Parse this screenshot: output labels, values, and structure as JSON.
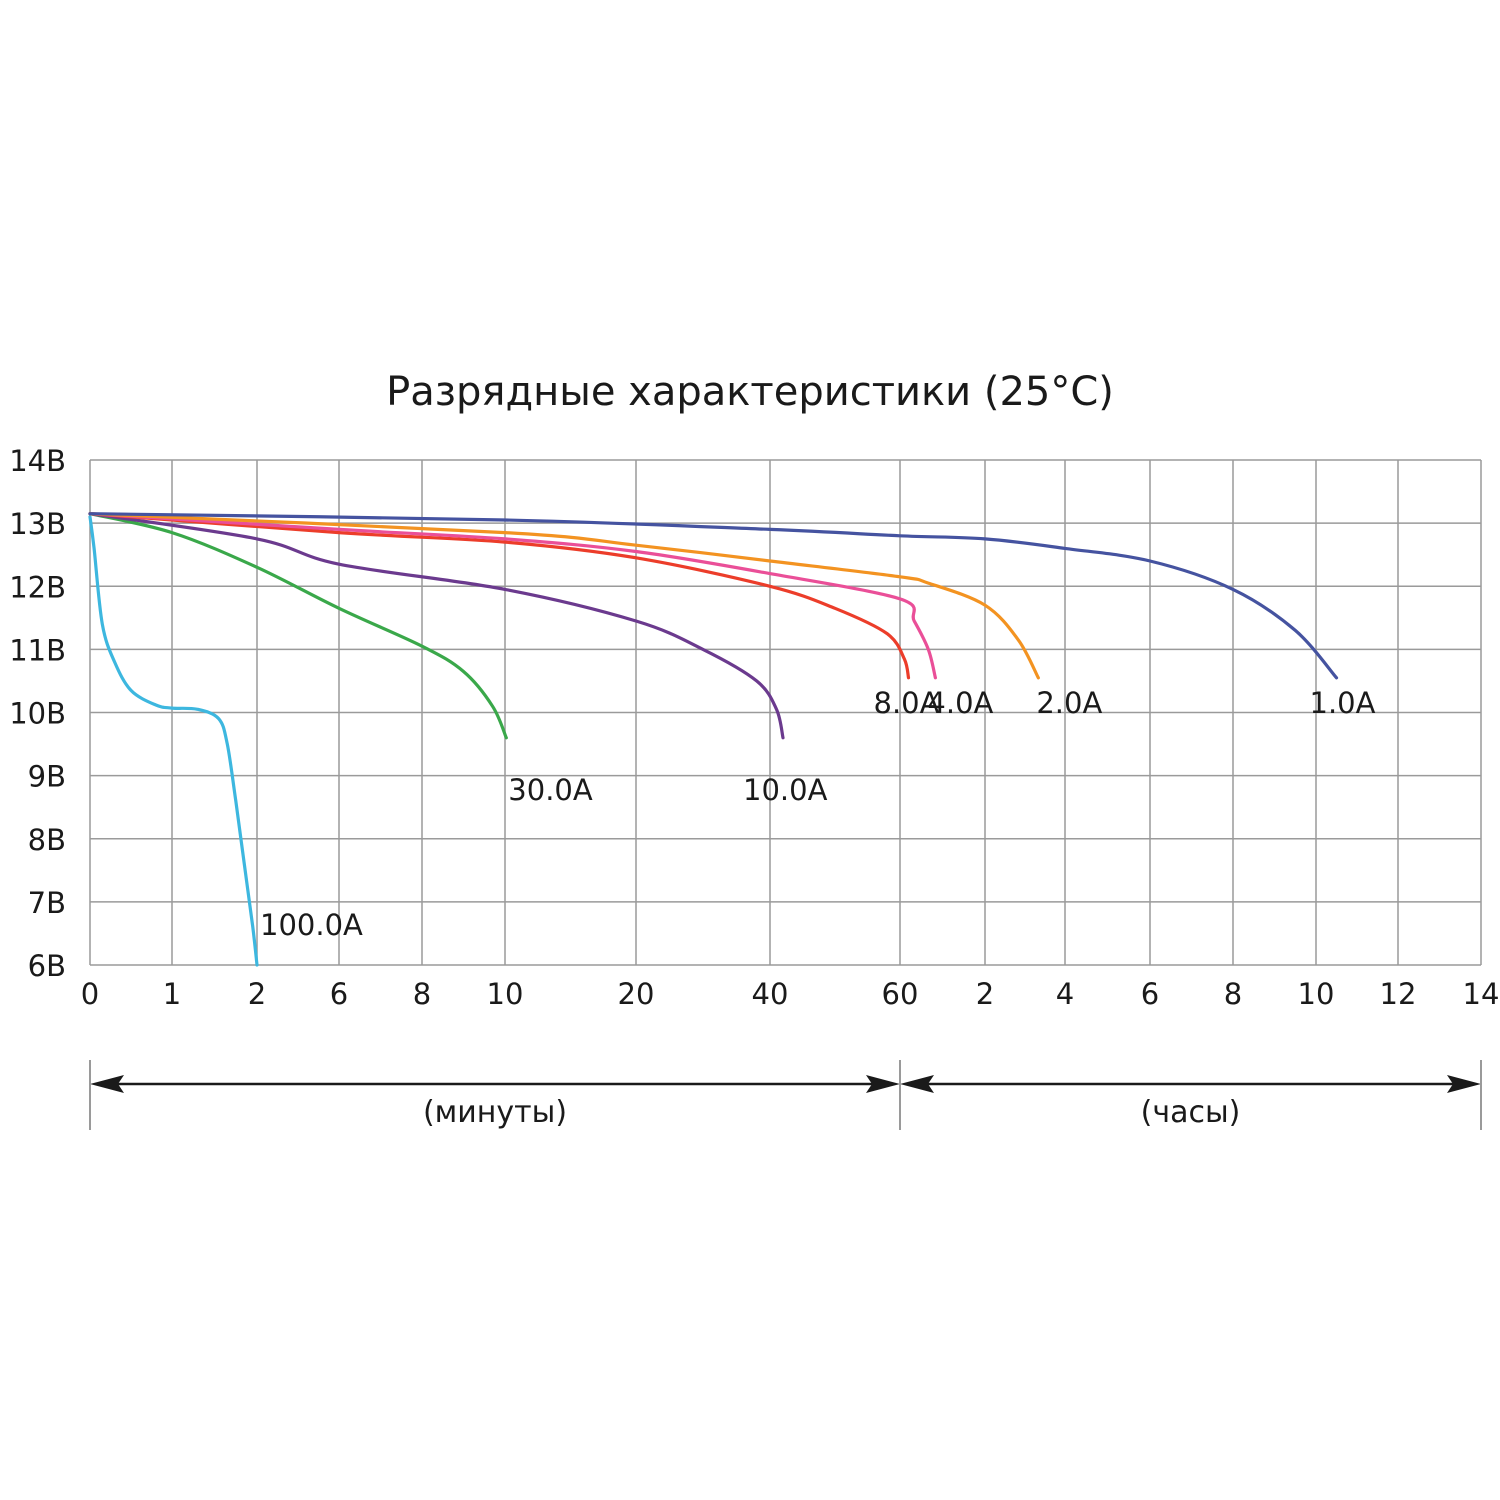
{
  "chart_data": {
    "type": "line",
    "title": "Разрядные характеристики (25°C)",
    "y_axis": {
      "range": [
        6,
        14
      ],
      "tick_values": [
        6,
        7,
        8,
        9,
        10,
        11,
        12,
        13,
        14
      ],
      "tick_labels": [
        "6В",
        "7В",
        "8В",
        "9В",
        "10В",
        "11В",
        "12В",
        "13В",
        "14В"
      ]
    },
    "x_axis": {
      "scale": "nonlinear",
      "tick_labels": [
        "0",
        "1",
        "2",
        "6",
        "8",
        "10",
        "20",
        "40",
        "60",
        "2",
        "4",
        "6",
        "8",
        "10",
        "12",
        "14"
      ],
      "ranges": [
        {
          "label": "(минуты)",
          "from_tick": 0,
          "to_tick": 8
        },
        {
          "label": "(часы)",
          "from_tick": 8,
          "to_tick": 15
        }
      ]
    },
    "grid": true,
    "legend": "inline labels at curve ends",
    "series": [
      {
        "name": "100.0A",
        "color": "#3db7df",
        "points": [
          [
            0,
            13.1
          ],
          [
            0.05,
            12.6
          ],
          [
            0.15,
            11.4
          ],
          [
            0.3,
            10.8
          ],
          [
            0.5,
            10.35
          ],
          [
            0.8,
            10.12
          ],
          [
            1.0,
            10.07
          ],
          [
            1.3,
            10.05
          ],
          [
            1.55,
            9.9
          ],
          [
            1.65,
            9.5
          ],
          [
            1.75,
            8.6
          ],
          [
            1.85,
            7.6
          ],
          [
            1.95,
            6.6
          ],
          [
            2.0,
            6.0
          ]
        ]
      },
      {
        "name": "30.0A",
        "color": "#3aa84a",
        "points": [
          [
            0,
            13.15
          ],
          [
            1,
            12.85
          ],
          [
            2,
            12.3
          ],
          [
            6,
            11.65
          ],
          [
            8,
            11.05
          ],
          [
            9,
            10.65
          ],
          [
            9.7,
            10.1
          ],
          [
            10.1,
            9.6
          ]
        ]
      },
      {
        "name": "10.0A",
        "color": "#6b3a8e",
        "points": [
          [
            0,
            13.15
          ],
          [
            2,
            12.75
          ],
          [
            6,
            12.35
          ],
          [
            10,
            11.95
          ],
          [
            20,
            11.45
          ],
          [
            30,
            11.0
          ],
          [
            38,
            10.5
          ],
          [
            41,
            10.05
          ],
          [
            42,
            9.6
          ]
        ]
      },
      {
        "name": "8.0A",
        "color": "#ec3d2a",
        "points": [
          [
            0,
            13.15
          ],
          [
            6,
            12.85
          ],
          [
            10,
            12.7
          ],
          [
            20,
            12.45
          ],
          [
            40,
            12.0
          ],
          [
            50,
            11.65
          ],
          [
            58,
            11.25
          ],
          [
            63,
            10.85
          ],
          [
            66,
            10.55
          ]
        ]
      },
      {
        "name": "4.0A",
        "color": "#ea4f98",
        "points": [
          [
            0,
            13.15
          ],
          [
            6,
            12.9
          ],
          [
            10,
            12.75
          ],
          [
            20,
            12.55
          ],
          [
            40,
            12.2
          ],
          [
            60,
            11.8
          ],
          [
            70,
            11.45
          ],
          [
            80,
            11.0
          ],
          [
            85,
            10.55
          ]
        ]
      },
      {
        "name": "2.0A",
        "color": "#f39321",
        "points": [
          [
            0,
            13.15
          ],
          [
            10,
            12.85
          ],
          [
            20,
            12.65
          ],
          [
            40,
            12.4
          ],
          [
            60,
            12.15
          ],
          [
            80,
            12.05
          ],
          [
            120,
            11.7
          ],
          [
            170,
            11.15
          ],
          [
            200,
            10.55
          ]
        ]
      },
      {
        "name": "1.0A",
        "color": "#4553a0",
        "points": [
          [
            0,
            13.15
          ],
          [
            10,
            13.05
          ],
          [
            40,
            12.9
          ],
          [
            60,
            12.8
          ],
          [
            120,
            12.75
          ],
          [
            240,
            12.6
          ],
          [
            360,
            12.4
          ],
          [
            480,
            11.95
          ],
          [
            570,
            11.3
          ],
          [
            630,
            10.55
          ]
        ]
      }
    ]
  }
}
